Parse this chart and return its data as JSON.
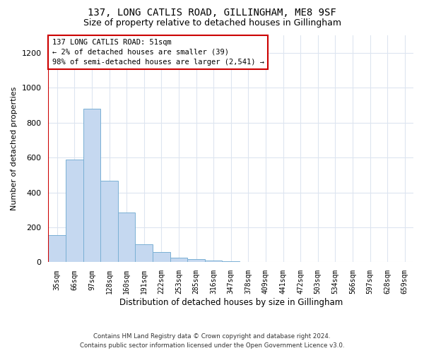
{
  "title_line1": "137, LONG CATLIS ROAD, GILLINGHAM, ME8 9SF",
  "title_line2": "Size of property relative to detached houses in Gillingham",
  "xlabel": "Distribution of detached houses by size in Gillingham",
  "ylabel": "Number of detached properties",
  "categories": [
    "35sqm",
    "66sqm",
    "97sqm",
    "128sqm",
    "160sqm",
    "191sqm",
    "222sqm",
    "253sqm",
    "285sqm",
    "316sqm",
    "347sqm",
    "378sqm",
    "409sqm",
    "441sqm",
    "472sqm",
    "503sqm",
    "534sqm",
    "566sqm",
    "597sqm",
    "628sqm",
    "659sqm"
  ],
  "values": [
    155,
    590,
    880,
    465,
    285,
    105,
    60,
    28,
    18,
    10,
    5,
    0,
    0,
    0,
    0,
    0,
    0,
    0,
    0,
    0,
    0
  ],
  "bar_color": "#c5d8f0",
  "bar_edge_color": "#7ab0d4",
  "annotation_box_color": "#ffffff",
  "annotation_border_color": "#cc0000",
  "annotation_text_line1": "137 LONG CATLIS ROAD: 51sqm",
  "annotation_text_line2": "← 2% of detached houses are smaller (39)",
  "annotation_text_line3": "98% of semi-detached houses are larger (2,541) →",
  "subject_bar_index": 0,
  "ylim": [
    0,
    1300
  ],
  "yticks": [
    0,
    200,
    400,
    600,
    800,
    1000,
    1200
  ],
  "footer_line1": "Contains HM Land Registry data © Crown copyright and database right 2024.",
  "footer_line2": "Contains public sector information licensed under the Open Government Licence v3.0.",
  "background_color": "#ffffff",
  "grid_color": "#dde5f0"
}
